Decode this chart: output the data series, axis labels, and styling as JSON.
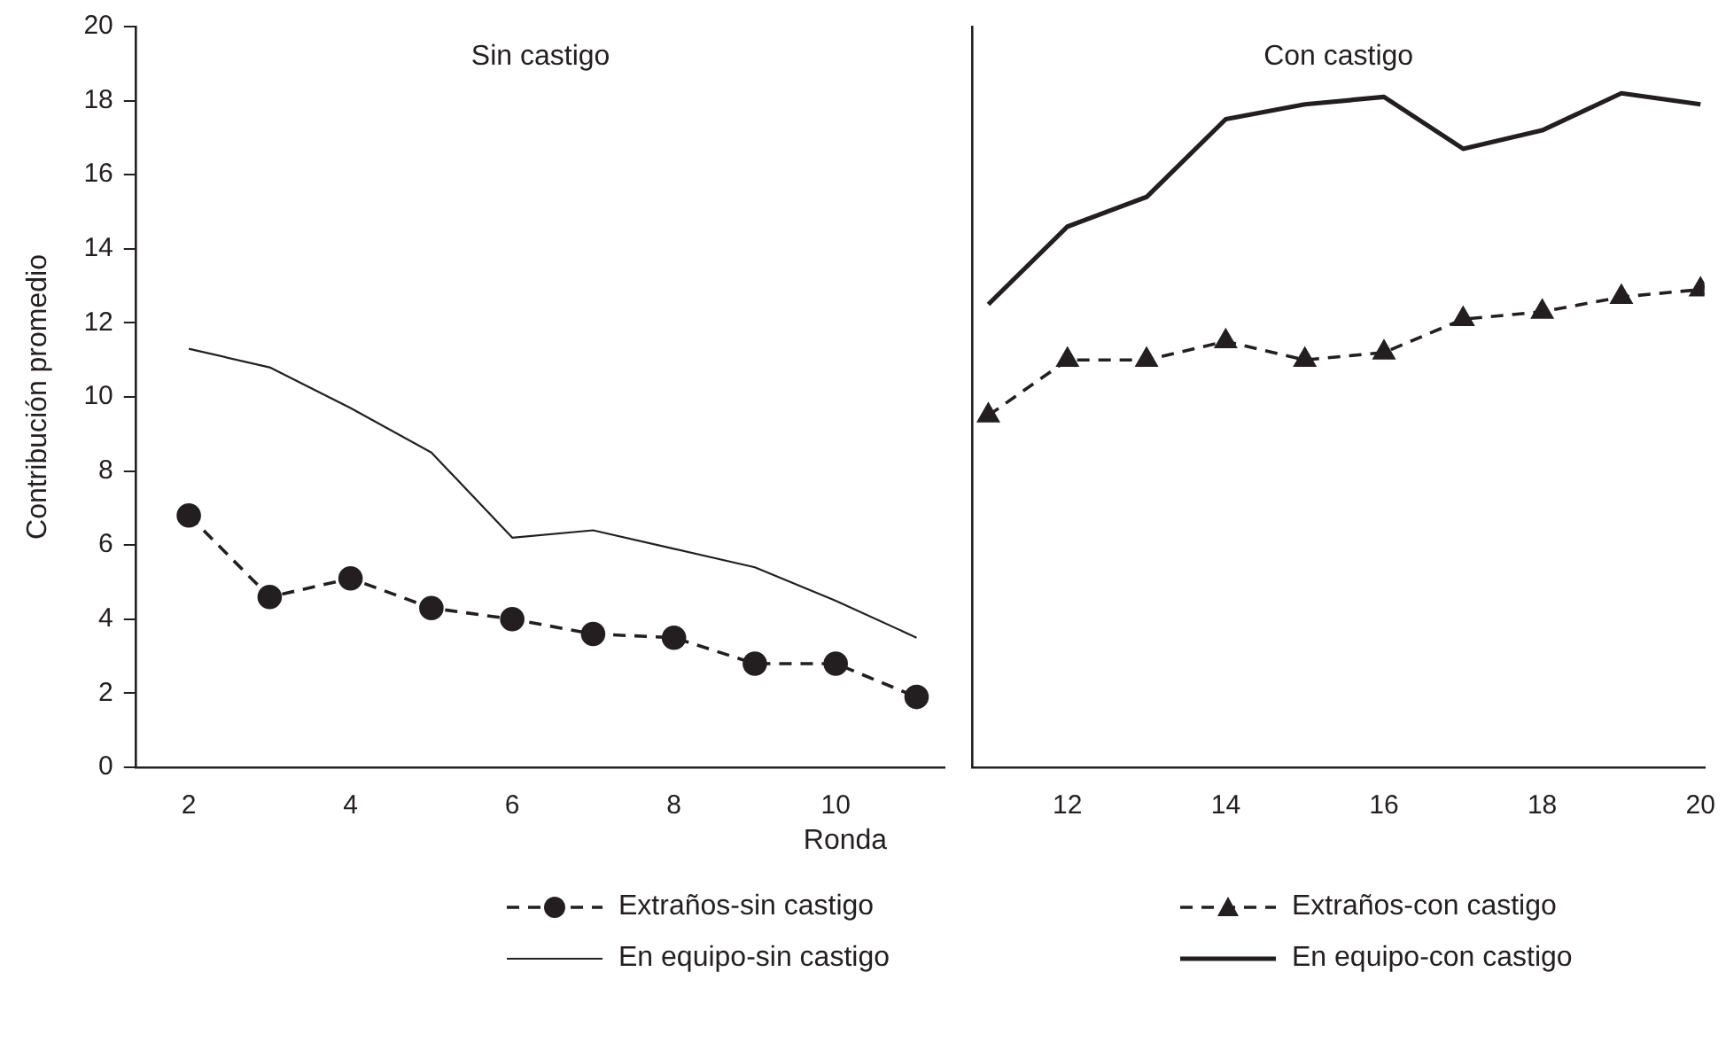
{
  "chart_data": [
    {
      "type": "line",
      "title": "Sin castigo",
      "xlabel": "Ronda",
      "ylabel": "Contribución promedio",
      "x": [
        2,
        3,
        4,
        5,
        6,
        7,
        8,
        9,
        10,
        11
      ],
      "xlim": [
        1.35,
        11.35
      ],
      "xticks": [
        2,
        4,
        6,
        8,
        10
      ],
      "ylim": [
        0,
        20
      ],
      "yticks": [
        0,
        2,
        4,
        6,
        8,
        10,
        12,
        14,
        16,
        18,
        20
      ],
      "legend": "bottom",
      "series": [
        {
          "name": "Extraños-sin castigo",
          "color": "#231f20",
          "line_style": "dashed",
          "marker": "circle",
          "values": [
            6.8,
            4.6,
            5.1,
            4.3,
            4.0,
            3.6,
            3.5,
            2.8,
            2.8,
            1.9
          ]
        },
        {
          "name": "En equipo-sin castigo",
          "color": "#231f20",
          "line_style": "solid",
          "marker": "none",
          "values": [
            11.3,
            10.8,
            9.7,
            8.5,
            6.2,
            6.4,
            5.9,
            5.4,
            4.5,
            3.5
          ]
        }
      ]
    },
    {
      "type": "line",
      "title": "Con castigo",
      "x": [
        11,
        12,
        13,
        14,
        15,
        16,
        17,
        18,
        19,
        20
      ],
      "xlim": [
        10.8,
        20.05
      ],
      "xticks": [
        12,
        14,
        16,
        18,
        20
      ],
      "ylim": [
        0,
        20
      ],
      "yticks": [
        0,
        2,
        4,
        6,
        8,
        10,
        12,
        14,
        16,
        18,
        20
      ],
      "tick_labels": "x",
      "legend": "bottom",
      "series": [
        {
          "name": "Extraños-con castigo",
          "color": "#231f20",
          "line_style": "dashed",
          "marker": "triangle",
          "values": [
            9.5,
            11.0,
            11.0,
            11.5,
            11.0,
            11.2,
            12.1,
            12.3,
            12.7,
            12.9
          ]
        },
        {
          "name": "En equipo-con castigo",
          "color": "#231f20",
          "line_style": "solid",
          "marker": "none",
          "values": [
            12.5,
            14.6,
            15.4,
            17.5,
            17.9,
            18.1,
            16.7,
            17.2,
            18.2,
            17.9
          ]
        }
      ]
    }
  ]
}
